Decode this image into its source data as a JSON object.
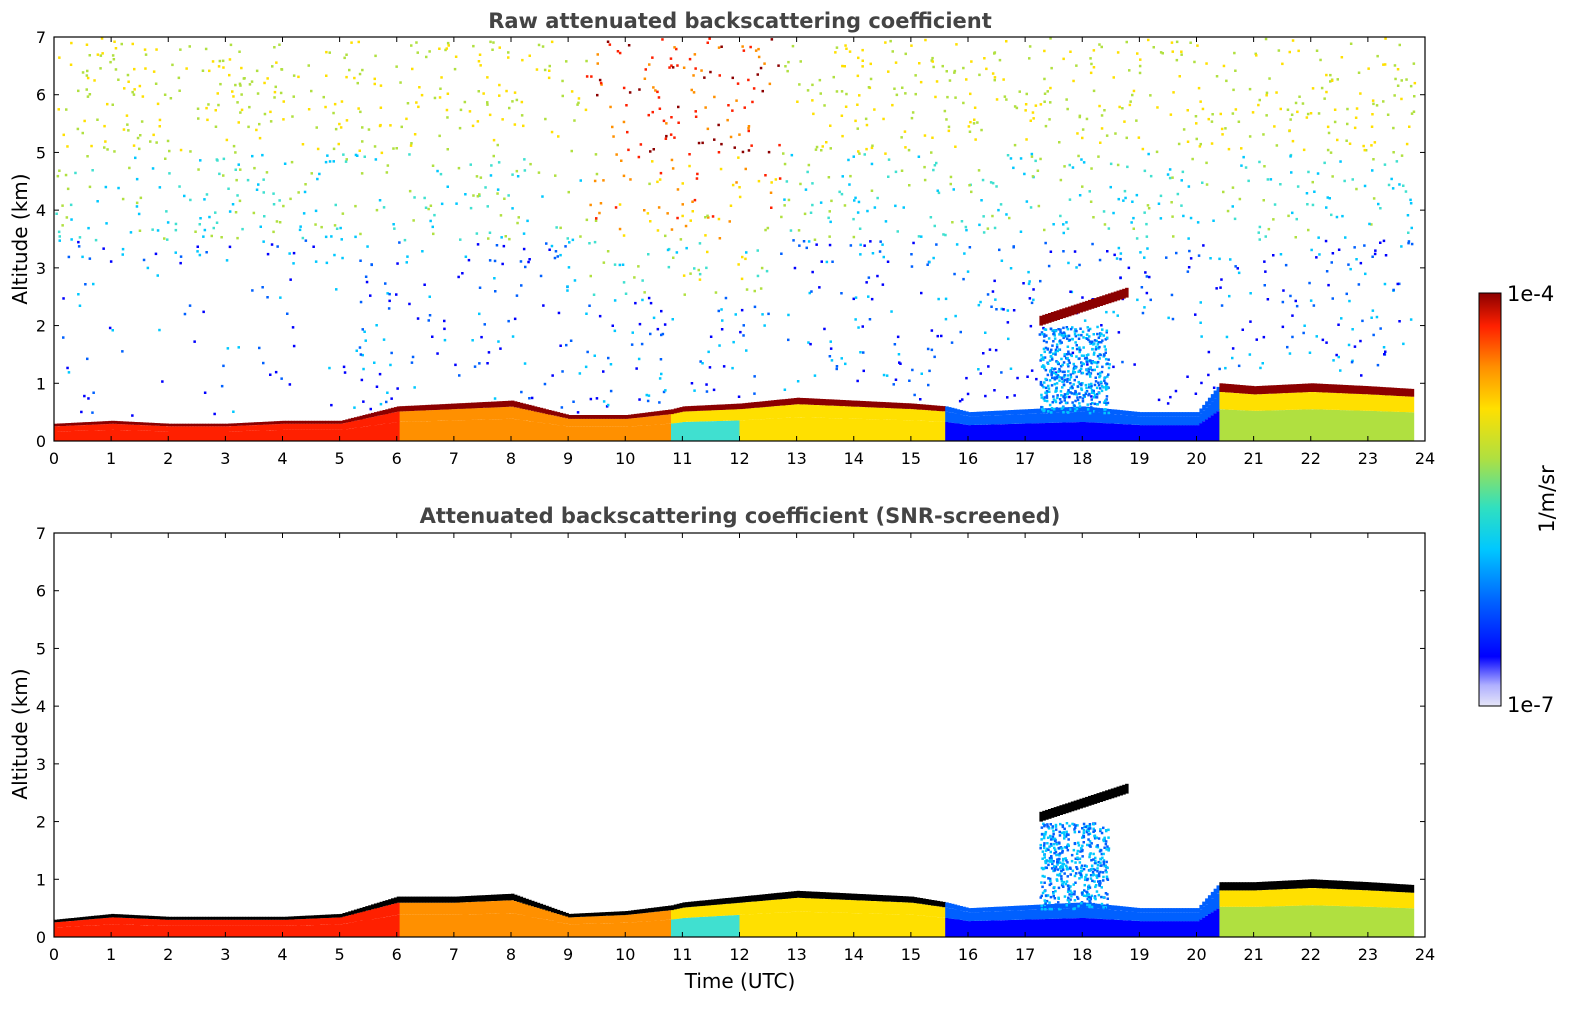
{
  "chart_data": [
    {
      "type": "heatmap",
      "title": "Raw attenuated backscattering coefficient",
      "xlabel": "",
      "ylabel": "Altitude (km)",
      "xlim": [
        0,
        24
      ],
      "ylim": [
        0,
        7
      ],
      "xticks": [
        "0",
        "1",
        "2",
        "3",
        "4",
        "5",
        "6",
        "7",
        "8",
        "9",
        "10",
        "11",
        "12",
        "13",
        "14",
        "15",
        "16",
        "17",
        "18",
        "19",
        "20",
        "21",
        "22",
        "23",
        "24"
      ],
      "yticks": [
        "0",
        "1",
        "2",
        "3",
        "4",
        "5",
        "6",
        "7"
      ],
      "colorbar_range": [
        "1e-7",
        "1e-4"
      ],
      "colorbar_label": "1/m/sr",
      "features": {
        "boundary_layer_top_km": [
          [
            0,
            0.3
          ],
          [
            1,
            0.35
          ],
          [
            2,
            0.3
          ],
          [
            3,
            0.3
          ],
          [
            4,
            0.35
          ],
          [
            5,
            0.35
          ],
          [
            6,
            0.6
          ],
          [
            7,
            0.65
          ],
          [
            8,
            0.7
          ],
          [
            9,
            0.45
          ],
          [
            10,
            0.45
          ],
          [
            10.8,
            0.55
          ],
          [
            11,
            0.6
          ],
          [
            12,
            0.65
          ],
          [
            13,
            0.75
          ],
          [
            14,
            0.7
          ],
          [
            15,
            0.65
          ],
          [
            15.6,
            0.6
          ],
          [
            16,
            0.5
          ],
          [
            17,
            0.55
          ],
          [
            18,
            0.6
          ],
          [
            19,
            0.5
          ],
          [
            20,
            0.5
          ],
          [
            20.4,
            1.0
          ],
          [
            21,
            0.95
          ],
          [
            22,
            1.0
          ],
          [
            23,
            0.95
          ],
          [
            23.8,
            0.9
          ]
        ],
        "elevated_layer": {
          "x_start": 17.25,
          "x_end": 18.8,
          "y_start_km": 2.05,
          "y_end_km": 2.55
        },
        "noise_level": "high"
      }
    },
    {
      "type": "heatmap",
      "title": "Attenuated backscattering coefficient (SNR-screened)",
      "xlabel": "Time (UTC)",
      "ylabel": "Altitude (km)",
      "xlim": [
        0,
        24
      ],
      "ylim": [
        0,
        7
      ],
      "xticks": [
        "0",
        "1",
        "2",
        "3",
        "4",
        "5",
        "6",
        "7",
        "8",
        "9",
        "10",
        "11",
        "12",
        "13",
        "14",
        "15",
        "16",
        "17",
        "18",
        "19",
        "20",
        "21",
        "22",
        "23",
        "24"
      ],
      "yticks": [
        "0",
        "1",
        "2",
        "3",
        "4",
        "5",
        "6",
        "7"
      ],
      "features": {
        "boundary_layer_top_km": [
          [
            0,
            0.3
          ],
          [
            1,
            0.4
          ],
          [
            2,
            0.35
          ],
          [
            3,
            0.35
          ],
          [
            4,
            0.35
          ],
          [
            5,
            0.4
          ],
          [
            6,
            0.7
          ],
          [
            7,
            0.7
          ],
          [
            8,
            0.75
          ],
          [
            9,
            0.4
          ],
          [
            10,
            0.45
          ],
          [
            10.8,
            0.55
          ],
          [
            11,
            0.6
          ],
          [
            12,
            0.7
          ],
          [
            13,
            0.8
          ],
          [
            14,
            0.75
          ],
          [
            15,
            0.7
          ],
          [
            15.6,
            0.6
          ],
          [
            16,
            0.5
          ],
          [
            17,
            0.55
          ],
          [
            18,
            0.6
          ],
          [
            19,
            0.5
          ],
          [
            20,
            0.5
          ],
          [
            20.4,
            0.95
          ],
          [
            21,
            0.95
          ],
          [
            22,
            1.0
          ],
          [
            23,
            0.95
          ],
          [
            23.8,
            0.9
          ]
        ],
        "elevated_layer": {
          "x_start": 17.25,
          "x_end": 18.8,
          "y_start_km": 2.05,
          "y_end_km": 2.55
        },
        "noise_level": "screened"
      }
    }
  ],
  "colors": {
    "title": "#444444",
    "colormap": [
      "#e6e6f8",
      "#0000ff",
      "#0060ff",
      "#00c8ff",
      "#40e0d0",
      "#b0e040",
      "#ffe000",
      "#ff9000",
      "#ff2000",
      "#8b0000"
    ],
    "screened_core": "#000000"
  }
}
